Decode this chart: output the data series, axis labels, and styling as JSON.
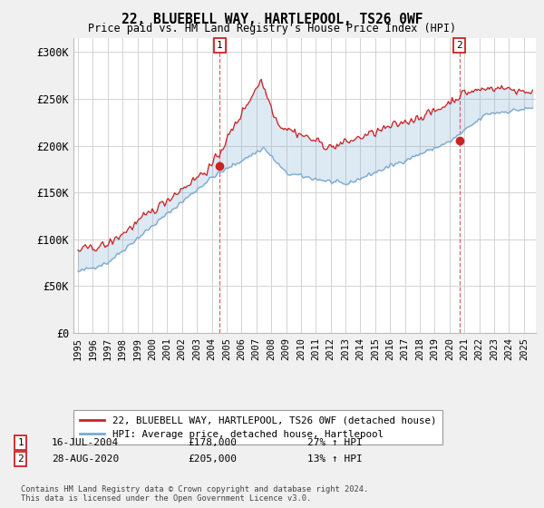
{
  "title1": "22, BLUEBELL WAY, HARTLEPOOL, TS26 0WF",
  "title2": "Price paid vs. HM Land Registry's House Price Index (HPI)",
  "ylabel_ticks": [
    "£0",
    "£50K",
    "£100K",
    "£150K",
    "£200K",
    "£250K",
    "£300K"
  ],
  "ytick_values": [
    0,
    50000,
    100000,
    150000,
    200000,
    250000,
    300000
  ],
  "ylim": [
    0,
    315000
  ],
  "xlim_start": 1994.7,
  "xlim_end": 2025.8,
  "hpi_color": "#7aaad0",
  "hpi_fill_color": "#ddeeff",
  "price_color": "#cc2222",
  "sale1_x": 2004.54,
  "sale1_y": 178000,
  "sale2_x": 2020.66,
  "sale2_y": 205000,
  "legend_label1": "22, BLUEBELL WAY, HARTLEPOOL, TS26 0WF (detached house)",
  "legend_label2": "HPI: Average price, detached house, Hartlepool",
  "annotation1_num": "1",
  "annotation1_date": "16-JUL-2004",
  "annotation1_price": "£178,000",
  "annotation1_hpi": "27% ↑ HPI",
  "annotation2_num": "2",
  "annotation2_date": "28-AUG-2020",
  "annotation2_price": "£205,000",
  "annotation2_hpi": "13% ↑ HPI",
  "footnote": "Contains HM Land Registry data © Crown copyright and database right 2024.\nThis data is licensed under the Open Government Licence v3.0.",
  "bg_color": "#f0f0f0",
  "plot_bg_color": "#ffffff",
  "grid_color": "#cccccc"
}
